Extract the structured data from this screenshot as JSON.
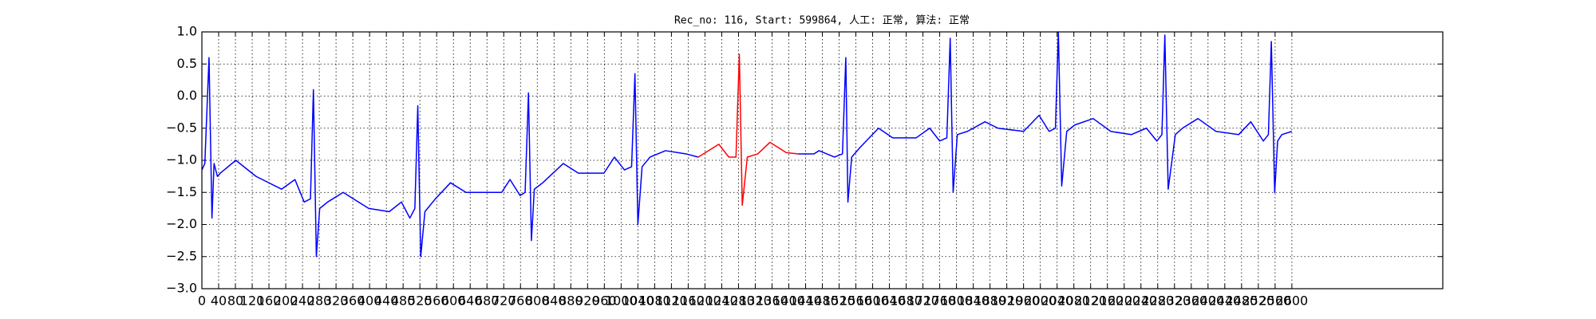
{
  "chart_data": {
    "type": "line",
    "title": "Rec_no: 116, Start: 599864, 人工: 正常, 算法: 正常",
    "xlim": [
      0,
      2960
    ],
    "xticks": [
      0,
      40,
      80,
      120,
      160,
      200,
      240,
      280,
      320,
      360,
      400,
      440,
      480,
      520,
      560,
      600,
      640,
      680,
      720,
      760,
      800,
      840,
      880,
      920,
      960,
      1000,
      1040,
      1080,
      1120,
      1160,
      1200,
      1240,
      1280,
      1320,
      1360,
      1400,
      1440,
      1480,
      1520,
      1560,
      1600,
      1640,
      1680,
      1720,
      1760,
      1800,
      1840,
      1880,
      1920,
      1960,
      2000,
      2040,
      2080,
      2120,
      2160,
      2200,
      2240,
      2280,
      2320,
      2360,
      2400,
      2440,
      2480,
      2520,
      2560,
      2600
    ],
    "ylim": [
      -3,
      1
    ],
    "yticks": [
      {
        "value": 1,
        "label": "1.0"
      },
      {
        "value": 0.5,
        "label": "0.5"
      },
      {
        "value": 0,
        "label": "0.0"
      },
      {
        "value": -0.5,
        "label": "−0.5"
      },
      {
        "value": -1,
        "label": "−1.0"
      },
      {
        "value": -1.5,
        "label": "−1.5"
      },
      {
        "value": -2,
        "label": "−2.0"
      },
      {
        "value": -2.5,
        "label": "−2.5"
      },
      {
        "value": -3,
        "label": "−3.0"
      }
    ],
    "grid": true,
    "series": [
      {
        "color": "#0000ff",
        "x": [
          0,
          7,
          17,
          24,
          29,
          37,
          44,
          81,
          129,
          190,
          222,
          244,
          259,
          266,
          273,
          281,
          300,
          337,
          398,
          447,
          476,
          496,
          508,
          515,
          522,
          532,
          557,
          593,
          630,
          715,
          735,
          759,
          771,
          779,
          786,
          793,
          813,
          862,
          898,
          959,
          984,
          1008,
          1025,
          1033,
          1040,
          1050,
          1069,
          1106,
          1155,
          1184
        ],
        "values": [
          -1.15,
          -1.05,
          0.6,
          -1.9,
          -1.05,
          -1.25,
          -1.2,
          -1.0,
          -1.25,
          -1.45,
          -1.3,
          -1.65,
          -1.6,
          0.1,
          -2.5,
          -1.75,
          -1.65,
          -1.5,
          -1.75,
          -1.8,
          -1.65,
          -1.9,
          -1.75,
          -0.15,
          -2.5,
          -1.8,
          -1.6,
          -1.35,
          -1.5,
          -1.5,
          -1.3,
          -1.55,
          -1.5,
          0.05,
          -2.25,
          -1.45,
          -1.35,
          -1.05,
          -1.2,
          -1.2,
          -0.95,
          -1.15,
          -1.1,
          0.35,
          -2.0,
          -1.1,
          -0.95,
          -0.85,
          -0.9,
          -0.95
        ]
      },
      {
        "color": "#ff0000",
        "x": [
          1184,
          1233,
          1257,
          1274,
          1282,
          1289,
          1301,
          1326,
          1355,
          1394,
          1423
        ],
        "values": [
          -0.95,
          -0.75,
          -0.95,
          -0.95,
          0.65,
          -1.7,
          -0.95,
          -0.9,
          -0.72,
          -0.88,
          -0.9
        ]
      },
      {
        "color": "#0000ff",
        "x": [
          1423,
          1460,
          1472,
          1509,
          1528,
          1536,
          1541,
          1550,
          1570,
          1614,
          1648,
          1704,
          1736,
          1760,
          1777,
          1785,
          1792,
          1802,
          1826,
          1868,
          1899,
          1960,
          1997,
          2021,
          2036,
          2043,
          2051,
          2063,
          2082,
          2126,
          2168,
          2217,
          2253,
          2278,
          2290,
          2297,
          2305,
          2322,
          2339,
          2376,
          2419,
          2473,
          2502,
          2532,
          2544,
          2551,
          2559,
          2566,
          2576,
          2600
        ],
        "values": [
          -0.9,
          -0.9,
          -0.85,
          -0.95,
          -0.9,
          0.6,
          -1.65,
          -0.95,
          -0.8,
          -0.5,
          -0.65,
          -0.65,
          -0.5,
          -0.7,
          -0.65,
          0.9,
          -1.5,
          -0.6,
          -0.55,
          -0.4,
          -0.5,
          -0.55,
          -0.3,
          -0.55,
          -0.5,
          1.0,
          -1.4,
          -0.55,
          -0.45,
          -0.35,
          -0.55,
          -0.6,
          -0.5,
          -0.7,
          -0.6,
          0.95,
          -1.45,
          -0.6,
          -0.5,
          -0.35,
          -0.55,
          -0.6,
          -0.4,
          -0.7,
          -0.6,
          0.85,
          -1.5,
          -0.7,
          -0.6,
          -0.55
        ]
      }
    ]
  }
}
